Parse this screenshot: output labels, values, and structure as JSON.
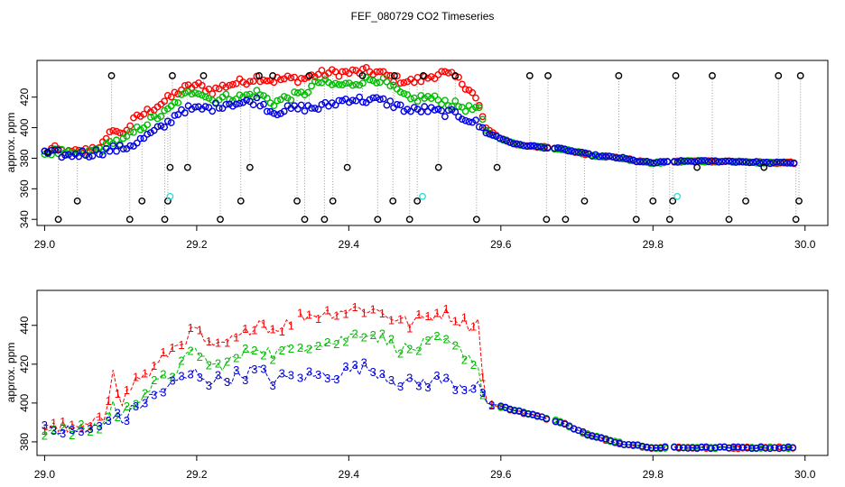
{
  "title": "FEF_080729  CO2 Timeseries",
  "colors": {
    "black": "#000000",
    "red": "#ff0000",
    "green": "#00bb00",
    "blue": "#0000dd",
    "cyan": "#33dddd",
    "gray": "#9a9a9a"
  },
  "chart_data": [
    {
      "type": "scatter",
      "ylabel": "approx. ppm",
      "xlim": [
        28.99,
        30.03
      ],
      "ylim": [
        336,
        444
      ],
      "xticks": [
        29.0,
        29.2,
        29.4,
        29.6,
        29.8,
        30.0
      ],
      "xtick_labels": [
        "29.0",
        "29.2",
        "29.4",
        "29.6",
        "29.8",
        "30.0"
      ],
      "yticks": [
        340,
        360,
        380,
        400,
        420
      ],
      "ytick_labels": [
        "340",
        "360",
        "380",
        "400",
        "420"
      ],
      "envelope": {
        "x": [
          29.0,
          29.01,
          29.02,
          29.03,
          29.04,
          29.05,
          29.06,
          29.07,
          29.08,
          29.09,
          29.1,
          29.12,
          29.14,
          29.16,
          29.18,
          29.2,
          29.22,
          29.24,
          29.26,
          29.28,
          29.3,
          29.32,
          29.34,
          29.36,
          29.38,
          29.4,
          29.42,
          29.44,
          29.46,
          29.48,
          29.5,
          29.52,
          29.54,
          29.56,
          29.57,
          29.58,
          29.59,
          29.6,
          29.62,
          29.64,
          29.66,
          29.68,
          29.7,
          29.72,
          29.74,
          29.76,
          29.78,
          29.8,
          29.84,
          29.9,
          29.95,
          29.99
        ],
        "blue": [
          383,
          383,
          383,
          381,
          383,
          383,
          383,
          384,
          385,
          386,
          386,
          390,
          396,
          402,
          412,
          412,
          413,
          416,
          416,
          418,
          410,
          412,
          413,
          413,
          416,
          419,
          418,
          418,
          415,
          411,
          412,
          410,
          409,
          405,
          402,
          397,
          395,
          393,
          389,
          388,
          387,
          386,
          384,
          382,
          381,
          380,
          378,
          377,
          378,
          378,
          377,
          377
        ],
        "green": [
          383,
          384,
          384,
          382,
          383,
          383,
          384,
          386,
          387,
          392,
          390,
          398,
          405,
          410,
          420,
          425,
          418,
          420,
          420,
          423,
          416,
          420,
          422,
          430,
          428,
          428,
          431,
          432,
          425,
          418,
          420,
          418,
          415,
          412,
          413,
          398,
          395,
          393,
          389,
          388,
          387,
          386,
          384,
          382,
          381,
          380,
          378,
          377,
          378,
          378,
          377,
          377
        ],
        "red": [
          384,
          386,
          385,
          383,
          384,
          384,
          386,
          388,
          390,
          400,
          395,
          406,
          412,
          418,
          425,
          428,
          424,
          428,
          430,
          433,
          431,
          432,
          432,
          435,
          436,
          436,
          437,
          436,
          432,
          430,
          432,
          436,
          433,
          425,
          416,
          400,
          396,
          393,
          389,
          388,
          387,
          386,
          384,
          382,
          381,
          380,
          378,
          377,
          378,
          378,
          377,
          377
        ]
      },
      "black_points": {
        "x": [
          29.004,
          29.018,
          29.043,
          29.088,
          29.112,
          29.128,
          29.158,
          29.162,
          29.165,
          29.168,
          29.188,
          29.209,
          29.231,
          29.258,
          29.27,
          29.282,
          29.3,
          29.332,
          29.342,
          29.348,
          29.368,
          29.379,
          29.398,
          29.418,
          29.438,
          29.458,
          29.46,
          29.48,
          29.49,
          29.498,
          29.518,
          29.54,
          29.568,
          29.595,
          29.638,
          29.66,
          29.662,
          29.685,
          29.71,
          29.755,
          29.778,
          29.8,
          29.822,
          29.826,
          29.83,
          29.858,
          29.878,
          29.9,
          29.922,
          29.946,
          29.965,
          29.988,
          29.992,
          29.994
        ],
        "y": [
          384,
          340,
          352,
          434,
          340,
          352,
          340,
          352,
          374,
          434,
          374,
          434,
          340,
          352,
          374,
          434,
          434,
          352,
          340,
          434,
          340,
          352,
          374,
          434,
          340,
          352,
          434,
          340,
          352,
          434,
          374,
          434,
          340,
          374,
          434,
          340,
          434,
          340,
          352,
          434,
          340,
          352,
          340,
          352,
          434,
          374,
          434,
          340,
          352,
          374,
          434,
          340,
          352,
          434
        ]
      },
      "cyan_points": {
        "x": [
          29.165,
          29.497,
          29.832
        ],
        "y": [
          355,
          355,
          355
        ]
      }
    },
    {
      "type": "line",
      "ylabel": "approx. ppm",
      "xlim": [
        28.99,
        30.03
      ],
      "ylim": [
        373,
        458
      ],
      "xticks": [
        29.0,
        29.2,
        29.4,
        29.6,
        29.8,
        30.0
      ],
      "xtick_labels": [
        "29.0",
        "29.2",
        "29.4",
        "29.6",
        "29.8",
        "30.0"
      ],
      "yticks": [
        380,
        400,
        420,
        440
      ],
      "ytick_labels": [
        "380",
        "400",
        "420",
        "440"
      ],
      "series_markers": [
        "1",
        "2",
        "3"
      ],
      "envelope": {
        "x": [
          29.0,
          29.02,
          29.04,
          29.06,
          29.08,
          29.09,
          29.1,
          29.12,
          29.14,
          29.16,
          29.18,
          29.2,
          29.22,
          29.24,
          29.26,
          29.28,
          29.3,
          29.32,
          29.34,
          29.36,
          29.38,
          29.4,
          29.42,
          29.44,
          29.46,
          29.48,
          29.5,
          29.52,
          29.54,
          29.56,
          29.57,
          29.58,
          29.6,
          29.62,
          29.64,
          29.66,
          29.68,
          29.7,
          29.72,
          29.74,
          29.76,
          29.78,
          29.8,
          29.84,
          29.9,
          29.95,
          29.99
        ],
        "s1": [
          387,
          388,
          386,
          388,
          392,
          420,
          400,
          412,
          416,
          425,
          432,
          438,
          427,
          431,
          434,
          443,
          438,
          441,
          445,
          446,
          447,
          448,
          449,
          447,
          444,
          441,
          444,
          447,
          444,
          440,
          442,
          400,
          398,
          396,
          394,
          392,
          390,
          386,
          383,
          381,
          379,
          378,
          377,
          377,
          377,
          377,
          377
        ],
        "s2": [
          386,
          387,
          385,
          387,
          390,
          400,
          392,
          402,
          408,
          413,
          420,
          428,
          418,
          421,
          424,
          430,
          425,
          427,
          430,
          432,
          431,
          434,
          437,
          434,
          430,
          427,
          430,
          432,
          428,
          424,
          418,
          400,
          398,
          396,
          394,
          392,
          390,
          386,
          383,
          381,
          379,
          378,
          377,
          377,
          377,
          377,
          377
        ],
        "s3": [
          386,
          386,
          385,
          386,
          389,
          395,
          390,
          398,
          403,
          408,
          412,
          416,
          411,
          413,
          415,
          417,
          412,
          413,
          414,
          414,
          415,
          417,
          418,
          416,
          412,
          410,
          411,
          412,
          410,
          408,
          412,
          400,
          398,
          396,
          394,
          392,
          390,
          386,
          383,
          381,
          379,
          378,
          377,
          377,
          377,
          377,
          377
        ]
      }
    }
  ]
}
